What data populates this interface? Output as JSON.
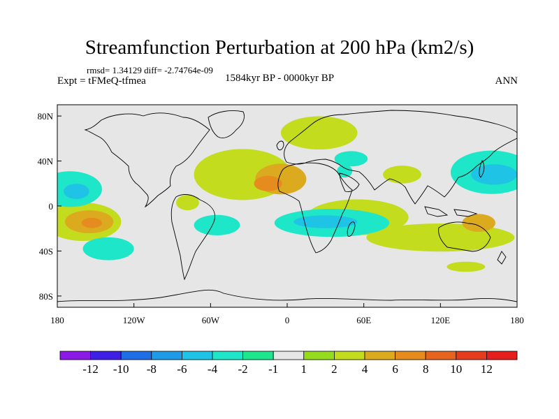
{
  "title": "Streamfunction Perturbation at 200 hPa (km2/s)",
  "stats": "rmsd= 1.34129  diff= -2.74764e-09",
  "experiment": "Expt = tFMeQ-tfmea",
  "period": "1584kyr BP - 0000kyr BP",
  "season": "ANN",
  "map": {
    "projection": "cylindrical-equidistant",
    "lon_range": [
      -180,
      180
    ],
    "lat_range": [
      -90,
      90
    ],
    "lon_ticks": [
      {
        "value": -180,
        "label": "180"
      },
      {
        "value": -120,
        "label": "120W"
      },
      {
        "value": -60,
        "label": "60W"
      },
      {
        "value": 0,
        "label": "0"
      },
      {
        "value": 60,
        "label": "60E"
      },
      {
        "value": 120,
        "label": "120E"
      },
      {
        "value": 180,
        "label": "180"
      }
    ],
    "lat_ticks": [
      {
        "value": 80,
        "label": "80N"
      },
      {
        "value": 40,
        "label": "40N"
      },
      {
        "value": 0,
        "label": "0"
      },
      {
        "value": -40,
        "label": "40S"
      },
      {
        "value": -80,
        "label": "80S"
      }
    ],
    "background_color": "#e6e6e6",
    "anomalies": [
      {
        "name": "n-atlantic-africa-high",
        "lon": -35,
        "lat": 28,
        "rlon": 38,
        "rlat": 20,
        "value": 2
      },
      {
        "name": "sahara-core",
        "lon": -5,
        "lat": 24,
        "rlon": 20,
        "rlat": 12,
        "value": 4
      },
      {
        "name": "w-africa-core",
        "lon": -15,
        "lat": 20,
        "rlon": 11,
        "rlat": 6,
        "value": 6
      },
      {
        "name": "scandinavia-high",
        "lon": 25,
        "lat": 65,
        "rlon": 30,
        "rlat": 13,
        "value": 2
      },
      {
        "name": "w-pacific-high",
        "lon": -160,
        "lat": -14,
        "rlon": 30,
        "rlat": 15,
        "value": 2
      },
      {
        "name": "w-pacific-core",
        "lon": -155,
        "lat": -14,
        "rlon": 19,
        "rlat": 9,
        "value": 4
      },
      {
        "name": "w-pacific-inner",
        "lon": -153,
        "lat": -15,
        "rlon": 8,
        "rlat": 4,
        "value": 6
      },
      {
        "name": "australia-high",
        "lon": 120,
        "lat": -28,
        "rlon": 58,
        "rlat": 11,
        "value": 2
      },
      {
        "name": "australia-core",
        "lon": 150,
        "lat": -15,
        "rlon": 13,
        "rlat": 7,
        "value": 4
      },
      {
        "name": "india-high",
        "lon": 90,
        "lat": 28,
        "rlon": 15,
        "rlat": 7,
        "value": 2
      },
      {
        "name": "s-america-high",
        "lon": -78,
        "lat": 3,
        "rlon": 9,
        "rlat": 6,
        "value": 2
      },
      {
        "name": "s-ocean-high",
        "lon": 140,
        "lat": -54,
        "rlon": 15,
        "rlat": 4,
        "value": 2
      },
      {
        "name": "s-indian-high",
        "lon": 55,
        "lat": -10,
        "rlon": 40,
        "rlat": 14,
        "value": 2
      },
      {
        "name": "e-pacific-low",
        "lon": -170,
        "lat": 15,
        "rlon": 25,
        "rlat": 14,
        "value": -2
      },
      {
        "name": "e-pacific-core",
        "lon": -165,
        "lat": 13,
        "rlon": 10,
        "rlat": 6,
        "value": -4
      },
      {
        "name": "n-pacific-low",
        "lon": 160,
        "lat": 30,
        "rlon": 32,
        "rlat": 17,
        "value": -2
      },
      {
        "name": "n-pacific-core",
        "lon": 162,
        "lat": 28,
        "rlon": 18,
        "rlat": 8,
        "value": -4
      },
      {
        "name": "indian-ocean-low",
        "lon": 35,
        "lat": -15,
        "rlon": 45,
        "rlat": 11,
        "value": -2
      },
      {
        "name": "indian-ocean-core",
        "lon": 30,
        "lat": -14,
        "rlon": 25,
        "rlat": 5,
        "value": -4
      },
      {
        "name": "s-pacific-low",
        "lon": -140,
        "lat": -38,
        "rlon": 20,
        "rlat": 9,
        "value": -2
      },
      {
        "name": "s-atlantic-low",
        "lon": -55,
        "lat": -17,
        "rlon": 18,
        "rlat": 8,
        "value": -2
      },
      {
        "name": "c-asia-low",
        "lon": 50,
        "lat": 42,
        "rlon": 13,
        "rlat": 6,
        "value": -2
      },
      {
        "name": "e-africa-low",
        "lon": 45,
        "lat": 31,
        "rlon": 6,
        "rlat": 5,
        "value": -2
      }
    ]
  },
  "colorbar": {
    "colors": [
      "#8b1ae6",
      "#3f1ee6",
      "#1e6ee6",
      "#1e9be6",
      "#1ec3e6",
      "#1ee6c8",
      "#1ee68c",
      "#e6e6e6",
      "#96dc1e",
      "#c3dc1e",
      "#dcaa1e",
      "#e68c1e",
      "#e6641e",
      "#e63c1e",
      "#e61e1e"
    ],
    "labels": [
      "-12",
      "-10",
      "-8",
      "-6",
      "-4",
      "-2",
      "-1",
      "1",
      "2",
      "4",
      "6",
      "8",
      "10",
      "12"
    ]
  }
}
